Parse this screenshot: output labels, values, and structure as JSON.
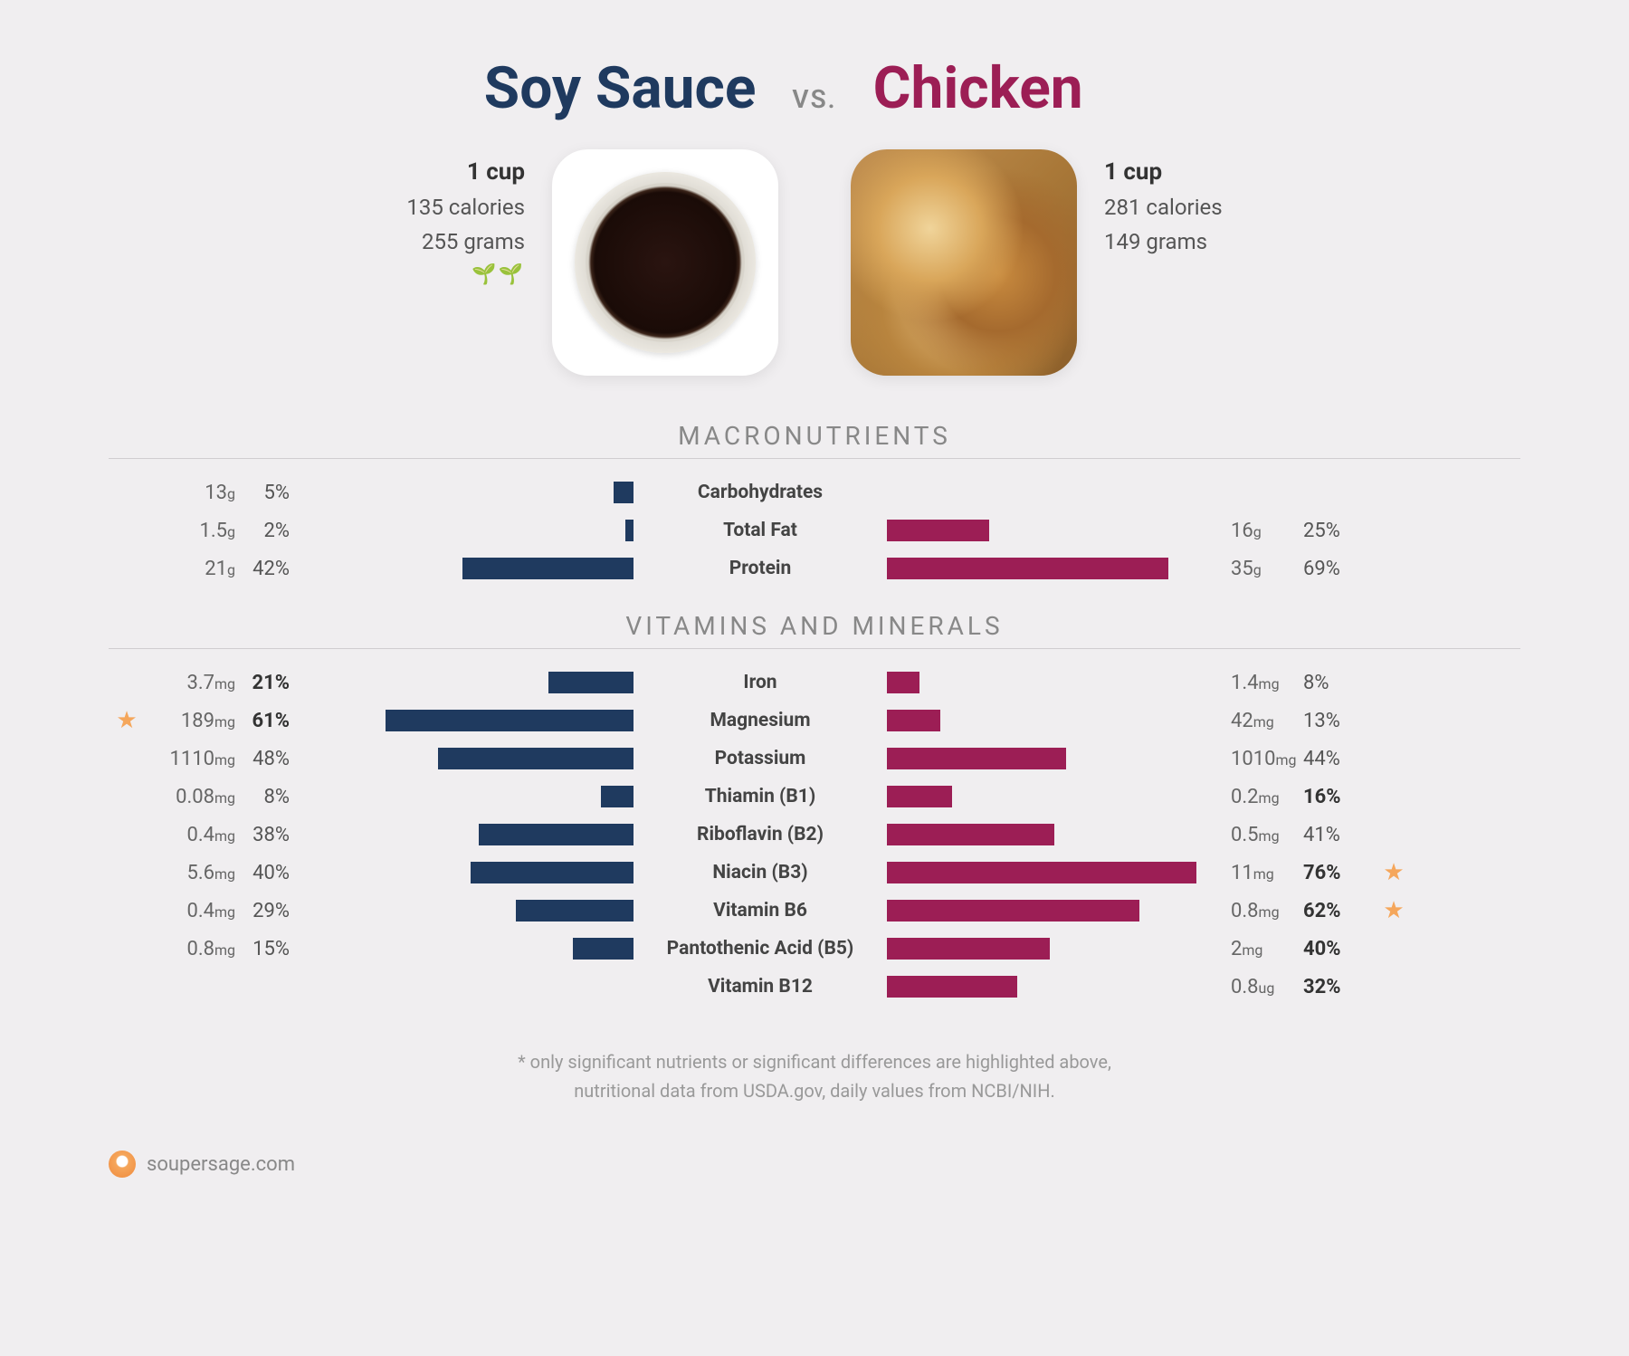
{
  "header": {
    "left_title": "Soy Sauce",
    "right_title": "Chicken",
    "vs": "VS."
  },
  "left_food": {
    "serving": "1 cup",
    "calories": "135 calories",
    "grams": "255 grams",
    "vegan_icons": "🌱🌱"
  },
  "right_food": {
    "serving": "1 cup",
    "calories": "281 calories",
    "grams": "149 grams"
  },
  "sections": {
    "macros": "MACRONUTRIENTS",
    "vitamins": "VITAMINS AND MINERALS"
  },
  "colors": {
    "left_bar": "#1f3a5f",
    "right_bar": "#9c1e55",
    "star": "#f5a65b",
    "text_muted": "#888888"
  },
  "bar_scale_pct_per_100width": 80,
  "macros": [
    {
      "label": "Carbohydrates",
      "left_val": "13",
      "left_unit": "g",
      "left_pct": "5%",
      "left_bar": 5,
      "right_val": "",
      "right_unit": "",
      "right_pct": "",
      "right_bar": 0
    },
    {
      "label": "Total Fat",
      "left_val": "1.5",
      "left_unit": "g",
      "left_pct": "2%",
      "left_bar": 2,
      "right_val": "16",
      "right_unit": "g",
      "right_pct": "25%",
      "right_bar": 25
    },
    {
      "label": "Protein",
      "left_val": "21",
      "left_unit": "g",
      "left_pct": "42%",
      "left_bar": 42,
      "right_val": "35",
      "right_unit": "g",
      "right_pct": "69%",
      "right_bar": 69
    }
  ],
  "vitamins": [
    {
      "label": "Iron",
      "left_val": "3.7",
      "left_unit": "mg",
      "left_pct": "21%",
      "left_bold": true,
      "left_bar": 21,
      "right_val": "1.4",
      "right_unit": "mg",
      "right_pct": "8%",
      "right_bar": 8
    },
    {
      "label": "Magnesium",
      "left_star": true,
      "left_val": "189",
      "left_unit": "mg",
      "left_pct": "61%",
      "left_bold": true,
      "left_bar": 61,
      "right_val": "42",
      "right_unit": "mg",
      "right_pct": "13%",
      "right_bar": 13
    },
    {
      "label": "Potassium",
      "left_val": "1110",
      "left_unit": "mg",
      "left_pct": "48%",
      "left_bar": 48,
      "right_val": "1010",
      "right_unit": "mg",
      "right_pct": "44%",
      "right_bar": 44
    },
    {
      "label": "Thiamin (B1)",
      "left_val": "0.08",
      "left_unit": "mg",
      "left_pct": "8%",
      "left_bar": 8,
      "right_val": "0.2",
      "right_unit": "mg",
      "right_pct": "16%",
      "right_bold": true,
      "right_bar": 16
    },
    {
      "label": "Riboflavin (B2)",
      "left_val": "0.4",
      "left_unit": "mg",
      "left_pct": "38%",
      "left_bar": 38,
      "right_val": "0.5",
      "right_unit": "mg",
      "right_pct": "41%",
      "right_bar": 41
    },
    {
      "label": "Niacin (B3)",
      "left_val": "5.6",
      "left_unit": "mg",
      "left_pct": "40%",
      "left_bar": 40,
      "right_val": "11",
      "right_unit": "mg",
      "right_pct": "76%",
      "right_bold": true,
      "right_bar": 76,
      "right_star": true
    },
    {
      "label": "Vitamin B6",
      "left_val": "0.4",
      "left_unit": "mg",
      "left_pct": "29%",
      "left_bar": 29,
      "right_val": "0.8",
      "right_unit": "mg",
      "right_pct": "62%",
      "right_bold": true,
      "right_bar": 62,
      "right_star": true
    },
    {
      "label": "Pantothenic Acid (B5)",
      "left_val": "0.8",
      "left_unit": "mg",
      "left_pct": "15%",
      "left_bar": 15,
      "right_val": "2",
      "right_unit": "mg",
      "right_pct": "40%",
      "right_bold": true,
      "right_bar": 40
    },
    {
      "label": "Vitamin B12",
      "left_val": "",
      "left_unit": "",
      "left_pct": "",
      "left_bar": 0,
      "right_val": "0.8",
      "right_unit": "ug",
      "right_pct": "32%",
      "right_bold": true,
      "right_bar": 32
    }
  ],
  "footnote_line1": "* only significant nutrients or significant differences are highlighted above,",
  "footnote_line2": "nutritional data from USDA.gov, daily values from NCBI/NIH.",
  "branding": "soupersage.com"
}
